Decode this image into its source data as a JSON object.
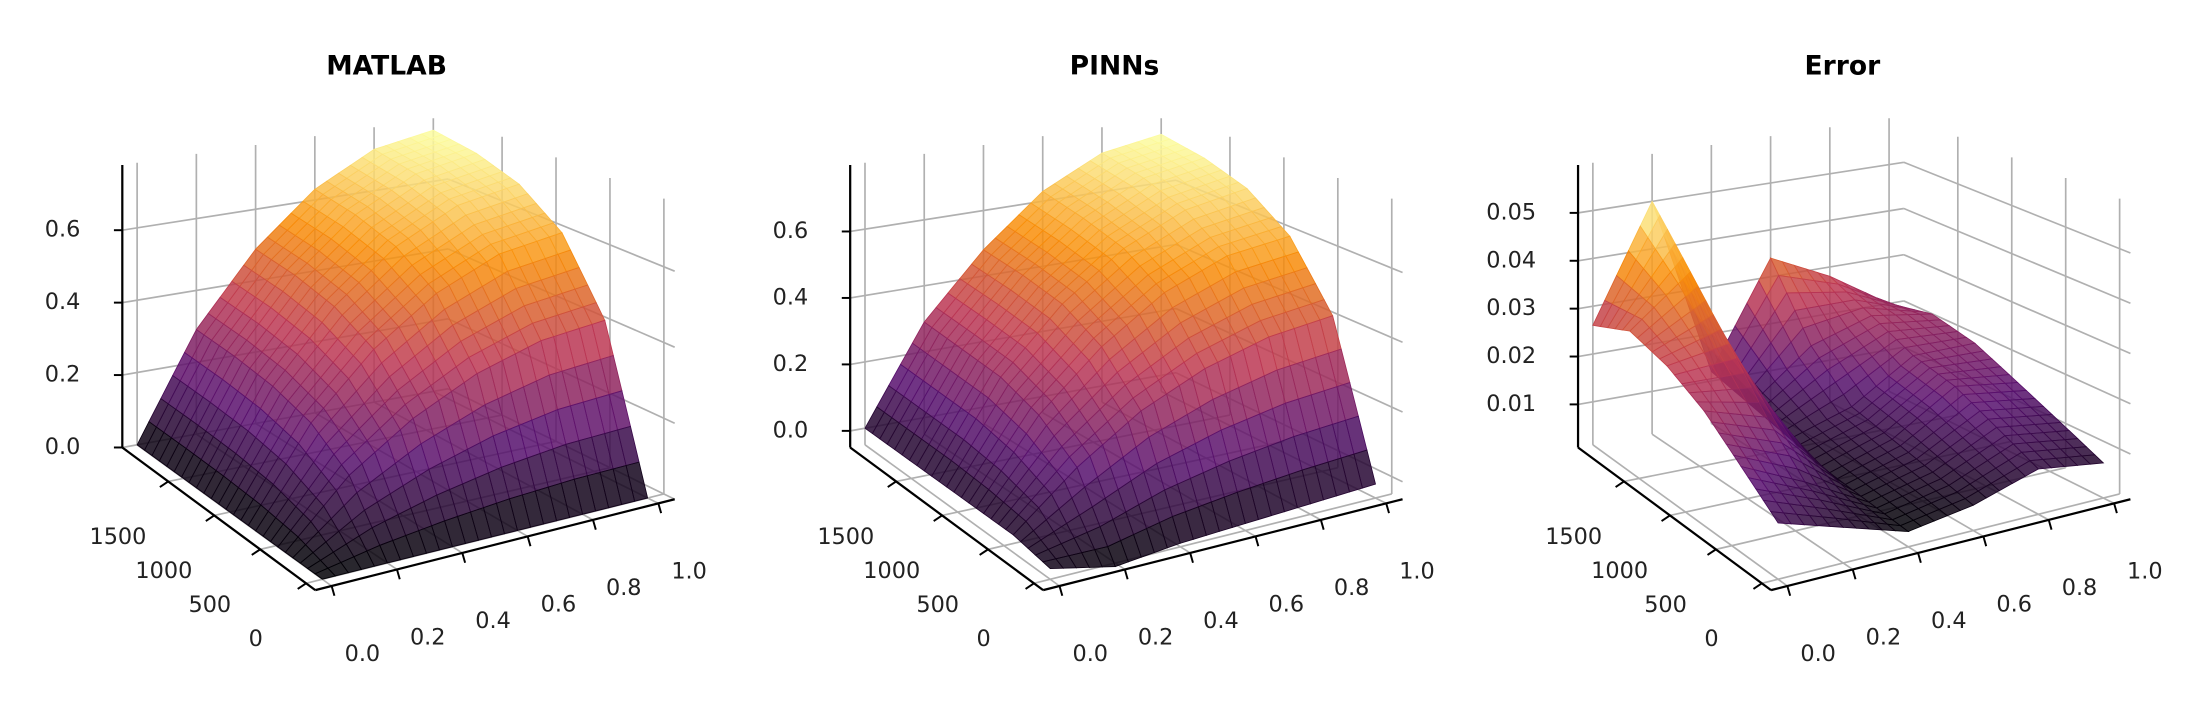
{
  "chart_data": [
    {
      "type": "surface3d",
      "title": "MATLAB",
      "colormap": "inferno",
      "grid": true,
      "xlim": [
        -0.05,
        1.05
      ],
      "xticks": [
        {
          "value": 0,
          "label": "0.0"
        },
        0.2,
        0.4,
        0.6,
        0.8,
        {
          "value": 1,
          "label": "1.0"
        }
      ],
      "ylim": [
        -100,
        2000
      ],
      "yticks": [
        0,
        500,
        1000,
        1500
      ],
      "zlim": [
        0,
        0.78
      ],
      "zticks": [
        {
          "value": 0,
          "label": "0.0"
        },
        0.2,
        0.4,
        0.6
      ],
      "x": [
        0,
        0.2,
        0.4,
        0.6,
        0.8,
        1
      ],
      "y": [
        0,
        400,
        800,
        1200,
        1600,
        2000
      ],
      "z": [
        [
          0,
          0,
          0,
          0,
          0,
          0
        ],
        [
          0,
          0.163,
          0.274,
          0.354,
          0.403,
          0.419
        ],
        [
          0,
          0.236,
          0.397,
          0.512,
          0.583,
          0.606
        ],
        [
          0,
          0.269,
          0.452,
          0.583,
          0.664,
          0.691
        ],
        [
          0,
          0.284,
          0.477,
          0.615,
          0.7,
          0.729
        ],
        [
          0,
          0.291,
          0.488,
          0.63,
          0.717,
          0.746
        ]
      ]
    },
    {
      "type": "surface3d",
      "title": "PINNs",
      "colormap": "inferno",
      "grid": true,
      "xlim": [
        -0.05,
        1.05
      ],
      "xticks": [
        {
          "value": 0,
          "label": "0.0"
        },
        0.2,
        0.4,
        0.6,
        0.8,
        {
          "value": 1,
          "label": "1.0"
        }
      ],
      "ylim": [
        -100,
        2000
      ],
      "yticks": [
        0,
        500,
        1000,
        1500
      ],
      "zlim": [
        -0.05,
        0.8
      ],
      "zticks": [
        {
          "value": 0,
          "label": "0.0"
        },
        0.2,
        0.4,
        0.6
      ],
      "x": [
        0,
        0.2,
        0.4,
        0.6,
        0.8,
        1
      ],
      "y": [
        0,
        400,
        800,
        1200,
        1600,
        2000
      ],
      "z": [
        [
          -0.02,
          -0.06,
          -0.04,
          -0.03,
          -0.02,
          -0.01
        ],
        [
          0,
          0.15,
          0.27,
          0.35,
          0.4,
          0.42
        ],
        [
          0,
          0.23,
          0.39,
          0.51,
          0.58,
          0.6
        ],
        [
          0,
          0.27,
          0.45,
          0.58,
          0.66,
          0.69
        ],
        [
          0,
          0.28,
          0.47,
          0.61,
          0.7,
          0.73
        ],
        [
          0,
          0.29,
          0.48,
          0.63,
          0.72,
          0.75
        ]
      ]
    },
    {
      "type": "surface3d",
      "title": "Error",
      "colormap": "inferno",
      "grid": true,
      "xlim": [
        -0.05,
        1.05
      ],
      "xticks": [
        {
          "value": 0,
          "label": "0.0"
        },
        0.2,
        0.4,
        0.6,
        0.8,
        {
          "value": 1,
          "label": "1.0"
        }
      ],
      "ylim": [
        -100,
        2000
      ],
      "yticks": [
        0,
        500,
        1000,
        1500
      ],
      "zlim": [
        0.001,
        0.06
      ],
      "zticks": [
        0.01,
        0.02,
        0.03,
        0.04,
        0.05
      ],
      "x": [
        0,
        0.2,
        0.4,
        0.6,
        0.8,
        1
      ],
      "y": [
        0,
        400,
        800,
        1200,
        1600,
        2000
      ],
      "z": [
        [
          0.012,
          0.008,
          0.004,
          0.006,
          0.01,
          0.008
        ],
        [
          0.018,
          0.012,
          0.005,
          0.008,
          0.014,
          0.012
        ],
        [
          0.024,
          0.02,
          0.006,
          0.01,
          0.018,
          0.016
        ],
        [
          0.028,
          0.03,
          0.008,
          0.012,
          0.02,
          0.02
        ],
        [
          0.03,
          0.04,
          0.01,
          0.02,
          0.024,
          0.022
        ],
        [
          0.026,
          0.05,
          0.012,
          0.034,
          0.028,
          0.02
        ]
      ]
    }
  ]
}
